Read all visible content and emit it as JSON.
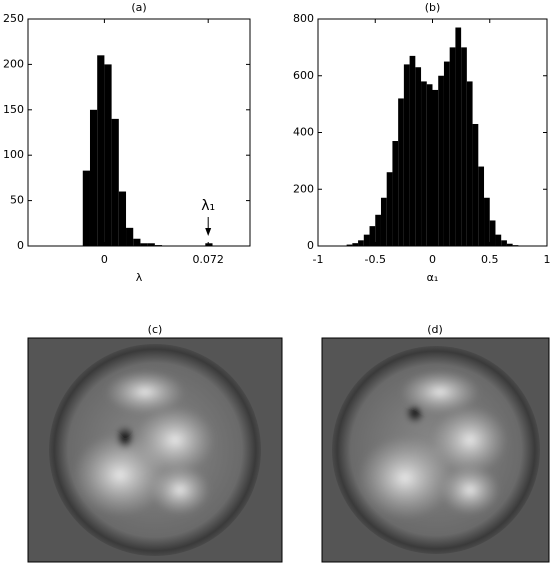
{
  "chart_data": [
    {
      "type": "histogram",
      "title": "(a)",
      "xlabel": "λ",
      "annotation": "λ₁",
      "bins": [
        -0.015,
        -0.01,
        -0.005,
        0,
        0.005,
        0.01,
        0.015,
        0.02,
        0.025,
        0.03,
        0.035,
        0.04,
        0.045,
        0.05,
        0.055,
        0.06,
        0.065,
        0.07,
        0.075
      ],
      "values": [
        83,
        150,
        210,
        200,
        140,
        60,
        20,
        8,
        3,
        3,
        1,
        0,
        0,
        0,
        0,
        0,
        0,
        3
      ],
      "color": "#000000",
      "xlim": [
        -0.053,
        0.101
      ],
      "xticks": [
        0,
        0.072
      ],
      "ylim": [
        0,
        250
      ],
      "yticks": [
        0,
        50,
        100,
        150,
        200,
        250
      ]
    },
    {
      "type": "histogram",
      "title": "(b)",
      "xlabel": "α₁",
      "bins": [
        -0.75,
        -0.7,
        -0.65,
        -0.6,
        -0.55,
        -0.5,
        -0.45,
        -0.4,
        -0.35,
        -0.3,
        -0.25,
        -0.2,
        -0.15,
        -0.1,
        -0.05,
        0,
        0.05,
        0.1,
        0.15,
        0.2,
        0.25,
        0.3,
        0.35,
        0.4,
        0.45,
        0.5,
        0.55,
        0.6,
        0.65,
        0.7,
        0.75
      ],
      "values": [
        5,
        10,
        20,
        40,
        70,
        110,
        170,
        260,
        370,
        520,
        640,
        670,
        630,
        580,
        570,
        550,
        600,
        650,
        700,
        770,
        700,
        580,
        430,
        280,
        170,
        90,
        40,
        20,
        8,
        3
      ],
      "color": "#000000",
      "xlim": [
        -1,
        1
      ],
      "xticks": [
        -1,
        -0.5,
        0,
        0.5,
        1
      ],
      "ylim": [
        0,
        800
      ],
      "yticks": [
        0,
        200,
        400,
        600,
        800
      ]
    }
  ],
  "images": [
    {
      "title": "(c)"
    },
    {
      "title": "(d)"
    }
  ]
}
